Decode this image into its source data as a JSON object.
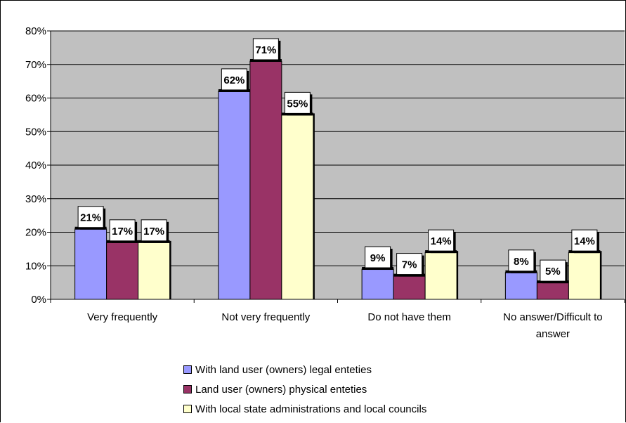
{
  "chart_data": {
    "type": "bar",
    "categories": [
      "Very frequently",
      "Not very frequently",
      "Do not have them",
      "No answer/Difficult to answer"
    ],
    "category_lines": [
      [
        "Very frequently"
      ],
      [
        "Not very frequently"
      ],
      [
        "Do not have them"
      ],
      [
        "No answer/Difficult to",
        "answer"
      ]
    ],
    "series": [
      {
        "name": "With land user (owners) legal enteties",
        "values": [
          21,
          62,
          9,
          8
        ],
        "color": "#9999ff"
      },
      {
        "name": "Land user (owners) physical enteties",
        "values": [
          17,
          71,
          7,
          5
        ],
        "color": "#993366"
      },
      {
        "name": "With local state administrations and local councils",
        "values": [
          17,
          55,
          14,
          14
        ],
        "color": "#ffffcc"
      }
    ],
    "data_labels": [
      [
        "21%",
        "62%",
        "9%",
        "8%"
      ],
      [
        "17%",
        "71%",
        "7%",
        "5%"
      ],
      [
        "17%",
        "55%",
        "14%",
        "14%"
      ]
    ],
    "y_ticks": [
      "0%",
      "10%",
      "20%",
      "30%",
      "40%",
      "50%",
      "60%",
      "70%",
      "80%"
    ],
    "ylim": [
      0,
      80
    ],
    "grid": true,
    "plot_background": "#c0c0c0",
    "legend_position": "bottom",
    "title": "",
    "xlabel": "",
    "ylabel": ""
  }
}
